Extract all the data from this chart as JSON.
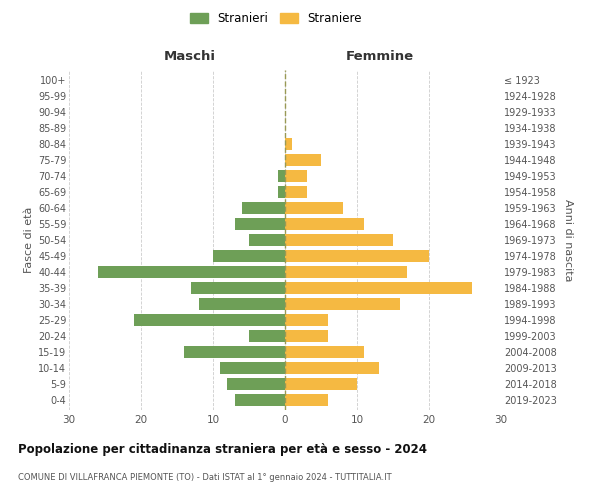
{
  "age_groups": [
    "0-4",
    "5-9",
    "10-14",
    "15-19",
    "20-24",
    "25-29",
    "30-34",
    "35-39",
    "40-44",
    "45-49",
    "50-54",
    "55-59",
    "60-64",
    "65-69",
    "70-74",
    "75-79",
    "80-84",
    "85-89",
    "90-94",
    "95-99",
    "100+"
  ],
  "birth_years": [
    "2019-2023",
    "2014-2018",
    "2009-2013",
    "2004-2008",
    "1999-2003",
    "1994-1998",
    "1989-1993",
    "1984-1988",
    "1979-1983",
    "1974-1978",
    "1969-1973",
    "1964-1968",
    "1959-1963",
    "1954-1958",
    "1949-1953",
    "1944-1948",
    "1939-1943",
    "1934-1938",
    "1929-1933",
    "1924-1928",
    "≤ 1923"
  ],
  "maschi": [
    7,
    8,
    9,
    14,
    5,
    21,
    12,
    13,
    26,
    10,
    5,
    7,
    6,
    1,
    1,
    0,
    0,
    0,
    0,
    0,
    0
  ],
  "femmine": [
    6,
    10,
    13,
    11,
    6,
    6,
    16,
    26,
    17,
    20,
    15,
    11,
    8,
    3,
    3,
    5,
    1,
    0,
    0,
    0,
    0
  ],
  "maschi_color": "#6e9f57",
  "femmine_color": "#f5b942",
  "title": "Popolazione per cittadinanza straniera per età e sesso - 2024",
  "subtitle": "COMUNE DI VILLAFRANCA PIEMONTE (TO) - Dati ISTAT al 1° gennaio 2024 - TUTTITALIA.IT",
  "ylabel_left": "Fasce di età",
  "ylabel_right": "Anni di nascita",
  "xlabel_left": "Maschi",
  "xlabel_right": "Femmine",
  "legend_maschi": "Stranieri",
  "legend_femmine": "Straniere",
  "xlim": 30,
  "background_color": "#ffffff",
  "grid_color": "#cccccc"
}
